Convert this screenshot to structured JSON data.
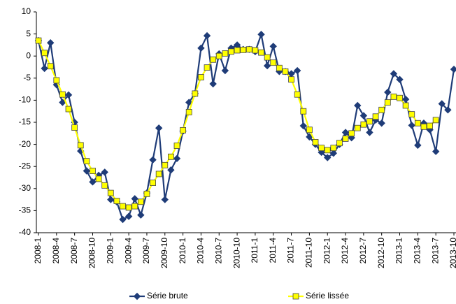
{
  "chart_data": {
    "type": "line",
    "categories": [
      "2008-1",
      null,
      null,
      "2008-4",
      null,
      null,
      "2008-7",
      null,
      null,
      "2008-10",
      null,
      null,
      "2009-1",
      null,
      null,
      "2009-4",
      null,
      null,
      "2009-7",
      null,
      null,
      "2009-10",
      null,
      null,
      "2010-1",
      null,
      null,
      "2010-4",
      null,
      null,
      "2010-7",
      null,
      null,
      "2010-10",
      null,
      null,
      "2011-1",
      null,
      null,
      "2011-4",
      null,
      null,
      "2011-7",
      null,
      null,
      "2011-10",
      null,
      null,
      "2012-1",
      null,
      null,
      "2012-4",
      null,
      null,
      "2012-7",
      null,
      null,
      "2012-10",
      null,
      null,
      "2013-1",
      null,
      null,
      "2013-4",
      null,
      null,
      "2013-7",
      null,
      null,
      "2013-10"
    ],
    "series": [
      {
        "name": "Série brute",
        "color": "#1f3c78",
        "marker": "diamond",
        "values": [
          3.5,
          -2.8,
          3,
          -6.5,
          -10.5,
          -8.8,
          -15,
          -21.5,
          -26,
          -28.5,
          -27,
          -26.3,
          -32.5,
          -33,
          -37,
          -36.3,
          -32.3,
          -36,
          -31,
          -23.5,
          -16.3,
          -32.5,
          -25.8,
          -23.2,
          -17,
          -10.5,
          -8.5,
          1.8,
          4.6,
          -6.3,
          0.5,
          -3.3,
          1.8,
          2.5,
          1.5,
          1.5,
          1,
          4.9,
          -2.2,
          2.2,
          -3.5,
          -3.5,
          -4,
          -3.3,
          -15.8,
          -18.3,
          -20,
          -21.8,
          -23,
          -22,
          -20,
          -17.3,
          -18.5,
          -11.2,
          -13.5,
          -17.3,
          -14.5,
          -15.2,
          -8.2,
          -4,
          -5.3,
          -9.8,
          -15.7,
          -20.2,
          -15.2,
          -16.7,
          -21.6,
          -10.8,
          -12.2,
          -3
        ]
      },
      {
        "name": "Série lissée",
        "color": "#ffff00",
        "marker": "square",
        "values": [
          3.5,
          0.7,
          -2.3,
          -5.5,
          -8.7,
          -12,
          -16.2,
          -20.2,
          -23.8,
          -26,
          -27.8,
          -29.3,
          -31,
          -32.8,
          -34,
          -34.3,
          -34,
          -33,
          -31.2,
          -28.7,
          -26.7,
          -24.7,
          -22.8,
          -20.3,
          -16.8,
          -12.7,
          -8.5,
          -4.8,
          -2.6,
          -0.8,
          0,
          0.6,
          1,
          1.3,
          1.4,
          1.5,
          1.3,
          0.8,
          -0.3,
          -1.5,
          -2.7,
          -3.5,
          -5.3,
          -8.7,
          -12.5,
          -16.7,
          -19.5,
          -20.8,
          -21.3,
          -20.8,
          -19.7,
          -18.7,
          -17.5,
          -16.3,
          -15.5,
          -14.8,
          -13.7,
          -12.2,
          -10.5,
          -9.2,
          -9.5,
          -11.2,
          -13.2,
          -15.2,
          -16,
          -15.8,
          -14.5,
          null,
          null,
          null
        ]
      }
    ],
    "ylim": [
      -40,
      10
    ],
    "yticks": [
      10,
      5,
      0,
      -5,
      -10,
      -15,
      -20,
      -25,
      -30,
      -35,
      -40
    ],
    "grid": false,
    "legend": "bottom"
  }
}
